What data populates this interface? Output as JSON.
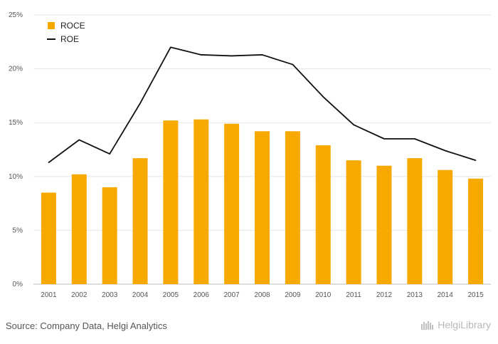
{
  "chart_data": {
    "type": "bar",
    "categories": [
      "2001",
      "2002",
      "2003",
      "2004",
      "2005",
      "2006",
      "2007",
      "2008",
      "2009",
      "2010",
      "2011",
      "2012",
      "2013",
      "2014",
      "2015"
    ],
    "series": [
      {
        "name": "ROCE",
        "kind": "bar",
        "color": "#f7a900",
        "values": [
          8.5,
          10.2,
          9.0,
          11.7,
          15.2,
          15.3,
          14.9,
          14.2,
          14.2,
          12.9,
          11.5,
          11.0,
          11.7,
          10.6,
          9.8
        ]
      },
      {
        "name": "ROE",
        "kind": "line",
        "color": "#111111",
        "values": [
          11.3,
          13.4,
          12.1,
          16.8,
          22.0,
          21.3,
          21.2,
          21.3,
          20.4,
          17.4,
          14.8,
          13.5,
          13.5,
          12.4,
          11.5
        ]
      }
    ],
    "ylim": [
      0,
      25
    ],
    "yticks": [
      "0%",
      "5%",
      "10%",
      "15%",
      "20%",
      "25%"
    ],
    "ytick_values": [
      0,
      5,
      10,
      15,
      20,
      25
    ],
    "grid": true,
    "legend_position": "top-left",
    "xlabel": "",
    "ylabel": ""
  },
  "footer": {
    "source": "Source: Company Data, Helgi Analytics",
    "logo_text": "HelgiLibrary",
    "logo_icon": "helgi-library-logo-icon"
  }
}
